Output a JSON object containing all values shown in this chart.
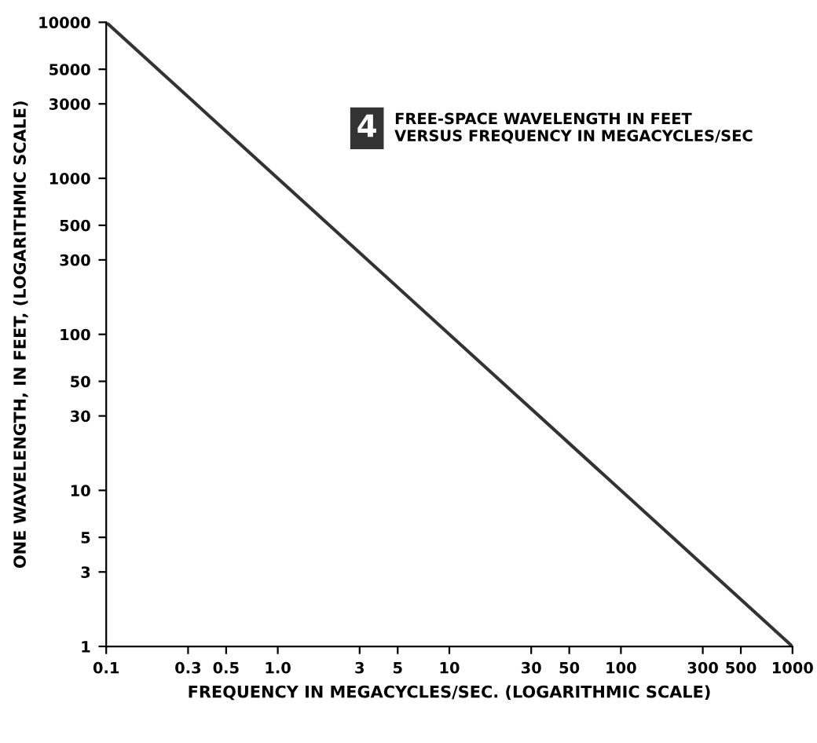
{
  "chart_data": {
    "type": "line",
    "title": "FREE-SPACE WAVELENGTH IN FEET\nVERSUS FREQUENCY IN MEGACYCLES/SEC",
    "annotations": [
      "4"
    ],
    "xlabel": "FREQUENCY IN MEGACYCLES/SEC. (LOGARITHMIC SCALE)",
    "ylabel": "ONE WAVELENGTH, IN FEET, (LOGARITHMIC SCALE)",
    "log": "xy",
    "x": [
      0.1,
      1000
    ],
    "series": [
      {
        "color": "#333333",
        "values": [
          10000,
          1
        ]
      }
    ],
    "xlim": [
      0.1,
      1000
    ],
    "ylim": [
      1,
      10000
    ],
    "xticks": [
      0.1,
      0.3,
      0.5,
      {
        "value": 1,
        "label": "1.0"
      },
      3,
      5,
      10,
      30,
      50,
      100,
      300,
      500,
      1000
    ],
    "yticks": [
      1,
      3,
      5,
      10,
      30,
      50,
      100,
      300,
      500,
      1000,
      3000,
      5000,
      10000
    ],
    "grid": false,
    "legend": false,
    "marker": "none",
    "line_style": "solid"
  }
}
